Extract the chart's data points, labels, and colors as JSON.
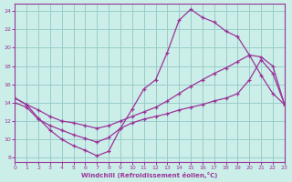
{
  "xlabel": "Windchill (Refroidissement éolien,°C)",
  "bg_color": "#cceee8",
  "line_color": "#993399",
  "grid_color": "#99cccc",
  "xlim": [
    0,
    23
  ],
  "ylim": [
    7.5,
    24.8
  ],
  "xticks": [
    0,
    1,
    2,
    3,
    4,
    5,
    6,
    7,
    8,
    9,
    10,
    11,
    12,
    13,
    14,
    15,
    16,
    17,
    18,
    19,
    20,
    21,
    22,
    23
  ],
  "yticks": [
    8,
    10,
    12,
    14,
    16,
    18,
    20,
    22,
    24
  ],
  "curve1_x": [
    0,
    1,
    2,
    3,
    4,
    5,
    6,
    7,
    8,
    9,
    10,
    11,
    12,
    13,
    14,
    15,
    16,
    17,
    18,
    19,
    20,
    21,
    22,
    23
  ],
  "curve1_y": [
    14.5,
    13.8,
    12.3,
    11.0,
    10.0,
    9.3,
    8.8,
    8.2,
    8.7,
    11.2,
    13.3,
    15.5,
    16.5,
    19.5,
    23.0,
    24.2,
    23.3,
    22.8,
    21.8,
    21.2,
    19.2,
    17.0,
    15.0,
    13.8
  ],
  "curve2_x": [
    0,
    1,
    2,
    3,
    4,
    5,
    6,
    7,
    8,
    9,
    10,
    11,
    12,
    13,
    14,
    15,
    16,
    17,
    18,
    19,
    20,
    21,
    22,
    23
  ],
  "curve2_y": [
    14.5,
    13.8,
    13.2,
    12.5,
    12.0,
    11.8,
    11.5,
    11.2,
    11.5,
    12.0,
    12.5,
    13.0,
    13.5,
    14.2,
    15.0,
    15.8,
    16.5,
    17.2,
    17.8,
    18.5,
    19.2,
    19.0,
    18.0,
    13.8
  ],
  "curve3_x": [
    0,
    1,
    2,
    3,
    4,
    5,
    6,
    7,
    8,
    9,
    10,
    11,
    12,
    13,
    14,
    15,
    16,
    17,
    18,
    19,
    20,
    21,
    22,
    23
  ],
  "curve3_y": [
    14.0,
    13.5,
    12.2,
    11.5,
    11.0,
    10.5,
    10.1,
    9.7,
    10.2,
    11.2,
    11.8,
    12.2,
    12.5,
    12.8,
    13.2,
    13.5,
    13.8,
    14.2,
    14.5,
    15.0,
    16.5,
    18.7,
    17.2,
    13.8
  ]
}
